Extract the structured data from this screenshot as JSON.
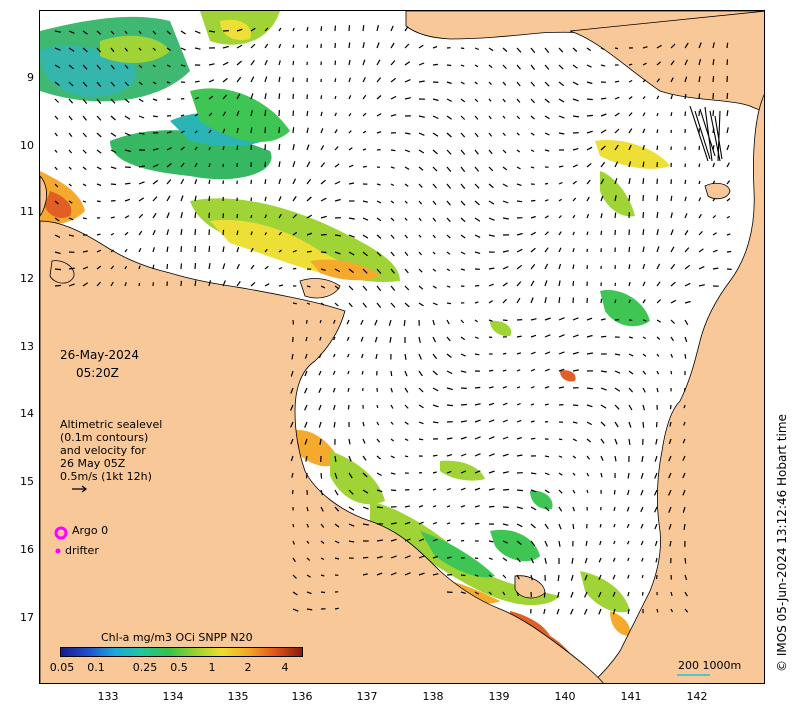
{
  "map": {
    "date": "26-May-2024",
    "time": "05:20Z",
    "legend_lines": [
      "Altimetric sealevel",
      "(0.1m contours)",
      "and velocity for",
      "26 May 05Z",
      "0.5m/s (1kt 12h)"
    ],
    "argo_label": "Argo 0",
    "drifter_label": "drifter",
    "colorbar_title": "Chl-a mg/m3 OCi SNPP N20",
    "colorbar_ticks": [
      "0.05",
      "0.1",
      "0.25",
      "0.5",
      "1",
      "2",
      "4"
    ],
    "scale_label": "200  1000m",
    "credit": "© IMOS 05-Jun-2024 13:12:46 Hobart time",
    "lat_labels": [
      "9",
      "10",
      "11",
      "12",
      "13",
      "14",
      "15",
      "16",
      "17"
    ],
    "lon_labels": [
      "133",
      "134",
      "135",
      "136",
      "137",
      "138",
      "139",
      "140",
      "141",
      "142"
    ],
    "colors": {
      "land": "#f9c898",
      "argo": "#ff00ff",
      "drifter": "#ff00ff",
      "scale_bar": "#55c4c4"
    },
    "colorbar_stops": [
      "#1a1a8c",
      "#1f4fd0",
      "#1ca6d8",
      "#22c7a0",
      "#35c24a",
      "#9ad12c",
      "#eede2c",
      "#f5a623",
      "#e0561a",
      "#8c1a0a"
    ]
  }
}
